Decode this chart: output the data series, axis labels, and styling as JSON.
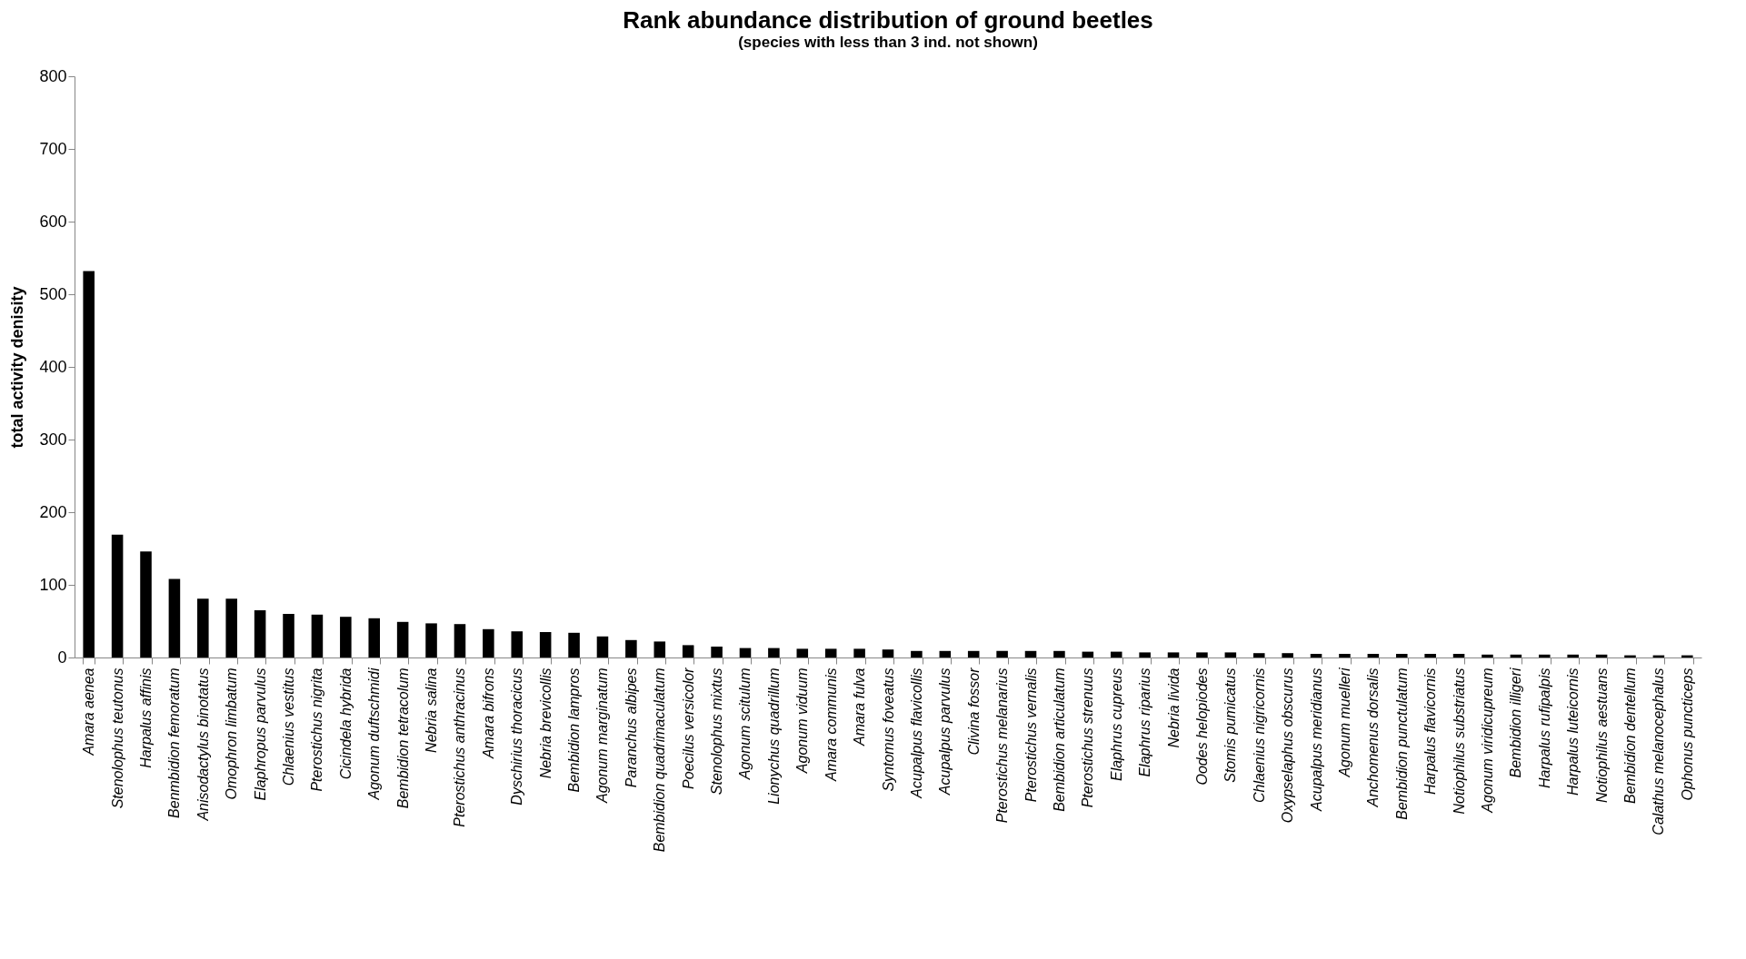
{
  "chart_data": {
    "type": "bar",
    "title": "Rank abundance distribution of ground beetles",
    "subtitle": "(species with less than 3 ind. not shown)",
    "ylabel": "total activity denisity",
    "categories": [
      "Amara aenea",
      "Stenolophus teutonus",
      "Harpalus affinis",
      "Benmbidion femoratum",
      "Anisodactylus binotatus",
      "Omophron limbatum",
      "Elaphropus parvulus",
      "Chlaenius vestitus",
      "Pterostichus nigrita",
      "Cicindela hybrida",
      "Agonum duftschmidi",
      "Bembidion tetracolum",
      "Nebria salina",
      "Pterostichus anthracinus",
      "Amara bifrons",
      "Dyschirius thoracicus",
      "Nebria brevicollis",
      "Bembidion lampros",
      "Agonum marginatum",
      "Paranchus albipes",
      "Bembidion quadrimaculatum",
      "Poecilus versicolor",
      "Stenolophus mixtus",
      "Agonum scitulum",
      "Lionychus quadrillum",
      "Agonum viduum",
      "Amara communis",
      "Amara fulva",
      "Syntomus foveatus",
      "Acupalpus flavicollis",
      "Acupalpus parvulus",
      "Clivina fossor",
      "Pterostichus melanarius",
      "Pterostichus vernalis",
      "Bembidion articulatum",
      "Pterostichus strenuus",
      "Elaphrus cupreus",
      "Elaphrus riparius",
      "Nebria livida",
      "Oodes helopiodes",
      "Stomis pumicatus",
      "Chlaenius nigricornis",
      "Oxypselaphus obscurus",
      "Acupalpus meridianus",
      "Agonum muelleri",
      "Anchomenus dorsalis",
      "Bembidion punctulatum",
      "Harpalus flavicornis",
      "Notiophilus substriatus",
      "Agonum viridicupreum",
      "Bembidion illigeri",
      "Harpalus rufipalpis",
      "Harpalus luteicornis",
      "Notiophilus aestuans",
      "Bembidion dentellum",
      "Calathus melanocephalus",
      "Ophonus puncticeps"
    ],
    "values": [
      532,
      169,
      146,
      108,
      81,
      81,
      65,
      60,
      59,
      56,
      54,
      49,
      47,
      46,
      39,
      36,
      35,
      34,
      29,
      24,
      22,
      17,
      15,
      13,
      13,
      12,
      12,
      12,
      11,
      9,
      9,
      9,
      9,
      9,
      9,
      8,
      8,
      7,
      7,
      7,
      7,
      6,
      6,
      5,
      5,
      5,
      5,
      5,
      5,
      4,
      4,
      4,
      4,
      4,
      3,
      3,
      3
    ],
    "color": "#000000",
    "ylim": [
      0,
      800
    ],
    "yticks": [
      0,
      100,
      200,
      300,
      400,
      500,
      600,
      700,
      800
    ]
  }
}
